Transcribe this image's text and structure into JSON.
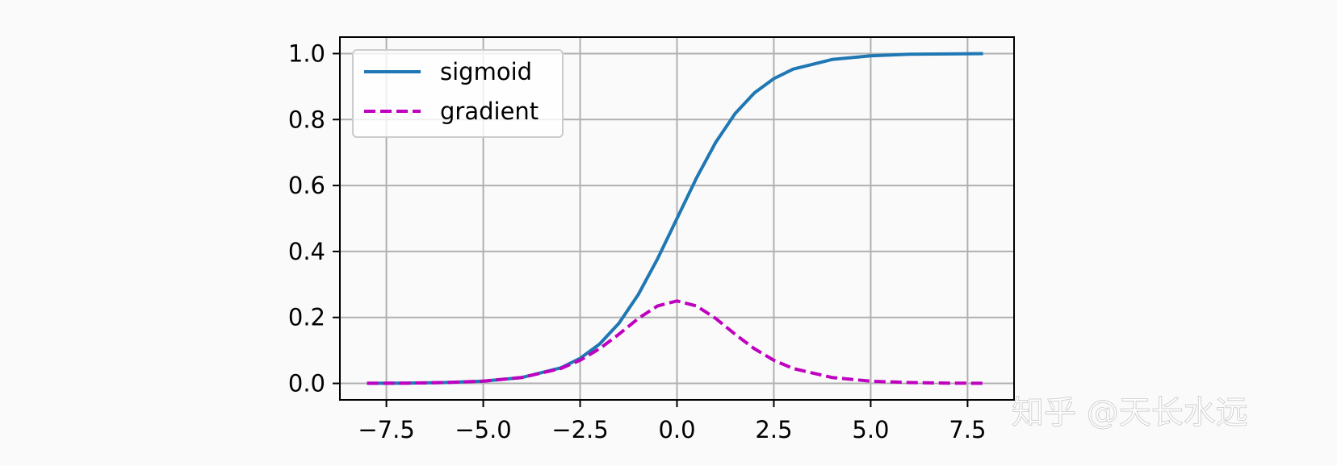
{
  "chart_data": {
    "type": "line",
    "title": "",
    "xlabel": "",
    "ylabel": "",
    "xlim": [
      -8.7,
      8.7
    ],
    "ylim": [
      -0.05,
      1.05
    ],
    "x_ticks": [
      -7.5,
      -5.0,
      -2.5,
      0.0,
      2.5,
      5.0,
      7.5
    ],
    "x_tick_labels": [
      "−7.5",
      "−5.0",
      "−2.5",
      "0.0",
      "2.5",
      "5.0",
      "7.5"
    ],
    "y_ticks": [
      0.0,
      0.2,
      0.4,
      0.6,
      0.8,
      1.0
    ],
    "y_tick_labels": [
      "0.0",
      "0.2",
      "0.4",
      "0.6",
      "0.8",
      "1.0"
    ],
    "grid": true,
    "legend_position": "top-left",
    "x": [
      -8,
      -7,
      -6,
      -5,
      -4,
      -3,
      -2.5,
      -2,
      -1.5,
      -1,
      -0.5,
      0,
      0.5,
      1,
      1.5,
      2,
      2.5,
      3,
      4,
      5,
      6,
      7,
      7.9
    ],
    "series": [
      {
        "name": "sigmoid",
        "color": "#1f77b4",
        "style": "solid",
        "values": [
          0.0003,
          0.0009,
          0.0025,
          0.0067,
          0.018,
          0.047,
          0.076,
          0.119,
          0.182,
          0.269,
          0.378,
          0.5,
          0.622,
          0.731,
          0.818,
          0.881,
          0.924,
          0.953,
          0.982,
          0.993,
          0.998,
          0.999,
          1.0
        ]
      },
      {
        "name": "gradient",
        "color": "#bf00bf",
        "style": "dashed",
        "values": [
          0.0003,
          0.0009,
          0.0025,
          0.0066,
          0.018,
          0.045,
          0.07,
          0.105,
          0.149,
          0.197,
          0.235,
          0.25,
          0.235,
          0.197,
          0.149,
          0.105,
          0.07,
          0.045,
          0.018,
          0.0066,
          0.0025,
          0.0009,
          0.0004
        ]
      }
    ]
  },
  "watermark": {
    "text": "知乎 @天长水远"
  }
}
